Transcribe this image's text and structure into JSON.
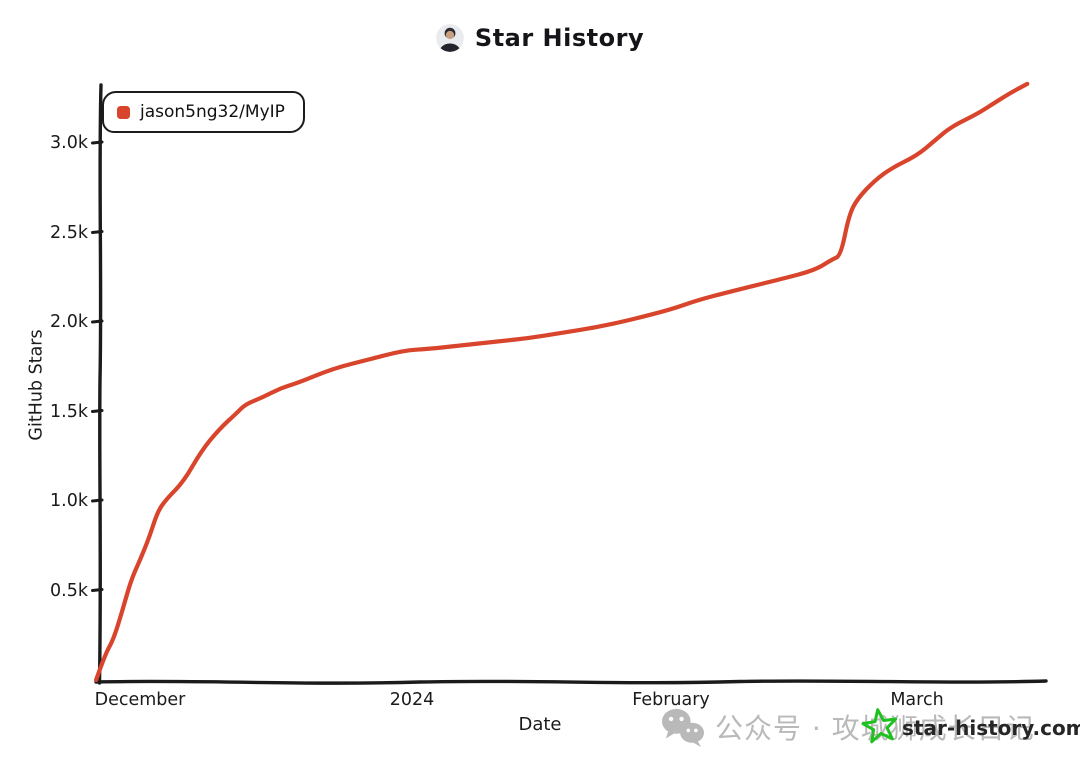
{
  "title": {
    "text": "Star History"
  },
  "legend": {
    "label": "jason5ng32/MyIP",
    "marker_color": "#D9452C"
  },
  "watermarks": {
    "wechat_text": "公众号 · 攻城狮成长日记",
    "site_text": "star-history.com",
    "wechat_color": "#b9b9b9",
    "star_color": "#1fc11f"
  },
  "chart_data": {
    "type": "line",
    "title": "Star History",
    "xlabel": "Date",
    "ylabel": "GitHub Stars",
    "grid": false,
    "legend_position": "top-left",
    "line_color": "#D9452C",
    "axis_color": "#1b1b1b",
    "ylim": [
      0,
      3400
    ],
    "y_ticks": [
      500,
      1000,
      1500,
      2000,
      2500,
      3000
    ],
    "y_tick_labels": [
      "0.5k",
      "1.0k",
      "1.5k",
      "2.0k",
      "2.5k",
      "3.0k"
    ],
    "x_tick_dates": [
      "2023-12-01",
      "2024-01-01",
      "2024-02-01",
      "2024-03-01"
    ],
    "x_tick_labels": [
      "December",
      "2024",
      "February",
      "March"
    ],
    "series": [
      {
        "name": "jason5ng32/MyIP",
        "color": "#D9452C",
        "points": [
          [
            "2023-11-26",
            0
          ],
          [
            "2023-11-27",
            140
          ],
          [
            "2023-11-28",
            230
          ],
          [
            "2023-11-29",
            390
          ],
          [
            "2023-11-30",
            560
          ],
          [
            "2023-12-01",
            670
          ],
          [
            "2023-12-02",
            790
          ],
          [
            "2023-12-03",
            940
          ],
          [
            "2023-12-04",
            1010
          ],
          [
            "2023-12-06",
            1110
          ],
          [
            "2023-12-08",
            1280
          ],
          [
            "2023-12-10",
            1400
          ],
          [
            "2023-12-12",
            1490
          ],
          [
            "2023-12-13",
            1540
          ],
          [
            "2023-12-15",
            1580
          ],
          [
            "2023-12-17",
            1630
          ],
          [
            "2023-12-19",
            1660
          ],
          [
            "2023-12-23",
            1740
          ],
          [
            "2023-12-27",
            1790
          ],
          [
            "2023-12-31",
            1840
          ],
          [
            "2024-01-03",
            1850
          ],
          [
            "2024-01-07",
            1870
          ],
          [
            "2024-01-11",
            1890
          ],
          [
            "2024-01-15",
            1910
          ],
          [
            "2024-01-19",
            1940
          ],
          [
            "2024-01-23",
            1970
          ],
          [
            "2024-01-27",
            2010
          ],
          [
            "2024-02-01",
            2070
          ],
          [
            "2024-02-04",
            2120
          ],
          [
            "2024-02-08",
            2170
          ],
          [
            "2024-02-14",
            2240
          ],
          [
            "2024-02-18",
            2290
          ],
          [
            "2024-02-20",
            2350
          ],
          [
            "2024-02-21",
            2370
          ],
          [
            "2024-02-22",
            2600
          ],
          [
            "2024-02-23",
            2690
          ],
          [
            "2024-02-25",
            2790
          ],
          [
            "2024-02-27",
            2860
          ],
          [
            "2024-03-01",
            2930
          ],
          [
            "2024-03-03",
            3010
          ],
          [
            "2024-03-05",
            3090
          ],
          [
            "2024-03-08",
            3160
          ],
          [
            "2024-03-10",
            3220
          ],
          [
            "2024-03-12",
            3280
          ],
          [
            "2024-03-14",
            3330
          ]
        ]
      }
    ]
  }
}
